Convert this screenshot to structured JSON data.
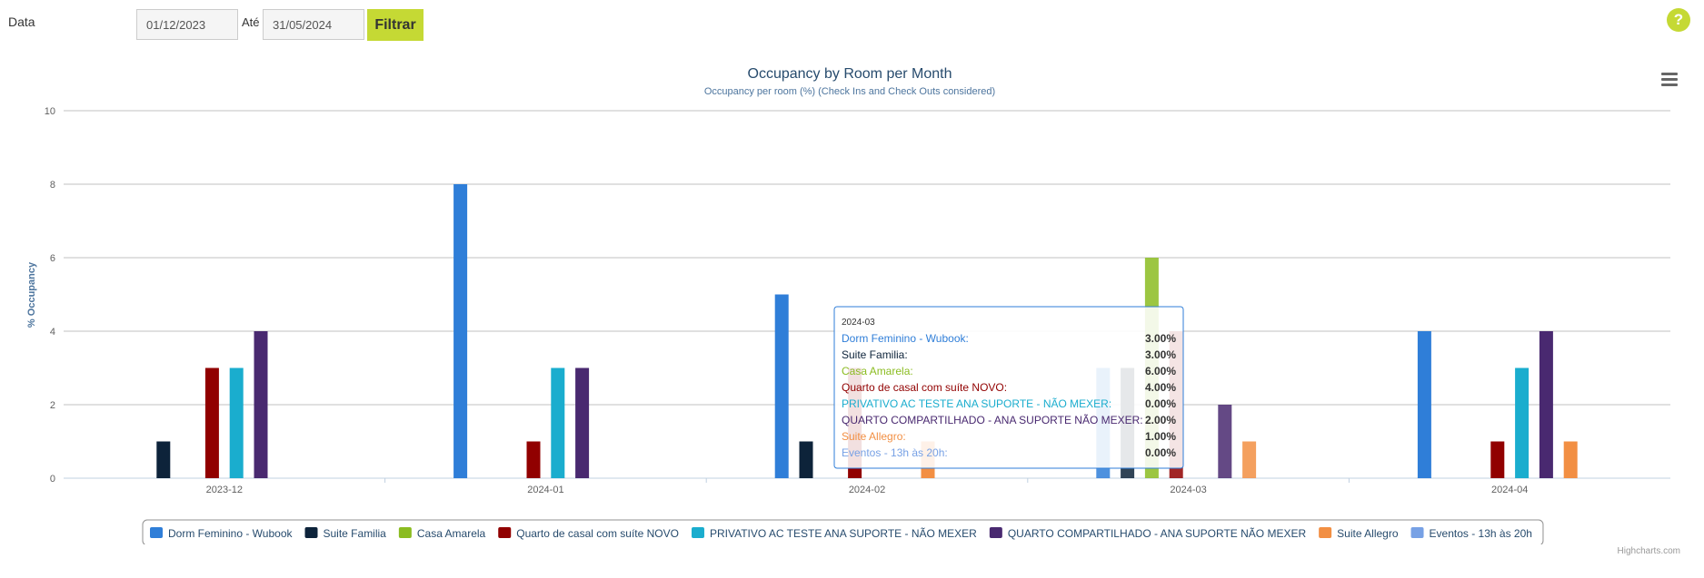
{
  "filter": {
    "label": "Data",
    "from_value": "01/12/2023",
    "ate_label": "Até",
    "to_value": "31/05/2024",
    "button_label": "Filtrar",
    "help_label": "?"
  },
  "colors": {
    "accent": "#c5d934"
  },
  "chart_data": {
    "type": "bar",
    "title": "Occupancy by Room per Month",
    "subtitle": "Occupancy per room (%) (Check Ins and Check Outs considered)",
    "xlabel": "",
    "ylabel": "% Occupancy",
    "ylim": [
      0,
      10
    ],
    "yticks": [
      "0",
      "2",
      "4",
      "6",
      "8",
      "10"
    ],
    "grid": true,
    "legend_position": "bottom",
    "categories": [
      "2023-12",
      "2024-01",
      "2024-02",
      "2024-03",
      "2024-04"
    ],
    "series": [
      {
        "name": "Dorm Feminino - Wubook",
        "color": "#2f7ed8",
        "values": [
          0,
          8,
          5,
          3,
          4
        ]
      },
      {
        "name": "Suite Familia",
        "color": "#0d233a",
        "values": [
          1,
          0,
          1,
          3,
          0
        ]
      },
      {
        "name": "Casa Amarela",
        "color": "#8bbc21",
        "values": [
          0,
          0,
          0,
          6,
          0
        ]
      },
      {
        "name": "Quarto de casal com suíte NOVO",
        "color": "#910000",
        "values": [
          3,
          1,
          3,
          4,
          1
        ]
      },
      {
        "name": "PRIVATIVO AC TESTE ANA SUPORTE - NÃO MEXER",
        "color": "#1aadce",
        "values": [
          3,
          3,
          0,
          0,
          3
        ]
      },
      {
        "name": "QUARTO COMPARTILHADO - ANA SUPORTE NÃO MEXER",
        "color": "#492970",
        "values": [
          4,
          3,
          0,
          2,
          4
        ]
      },
      {
        "name": "Suite Allegro",
        "color": "#f28f43",
        "values": [
          0,
          0,
          1,
          1,
          1
        ]
      },
      {
        "name": "Eventos - 13h às 20h",
        "color": "#77a1e5",
        "values": [
          0,
          0,
          0,
          0,
          0
        ]
      }
    ],
    "tooltip": {
      "category": "2024-03",
      "rows": [
        {
          "label": "Dorm Feminino - Wubook:",
          "value": "3.00%"
        },
        {
          "label": "Suite Familia:",
          "value": "3.00%"
        },
        {
          "label": "Casa Amarela:",
          "value": "6.00%"
        },
        {
          "label": "Quarto de casal com suíte NOVO:",
          "value": "4.00%"
        },
        {
          "label": "PRIVATIVO AC TESTE ANA SUPORTE - NÃO MEXER:",
          "value": "0.00%"
        },
        {
          "label": "QUARTO COMPARTILHADO - ANA SUPORTE NÃO MEXER:",
          "value": "2.00%"
        },
        {
          "label": "Suite Allegro:",
          "value": "1.00%"
        },
        {
          "label": "Eventos - 13h às 20h:",
          "value": "0.00%"
        }
      ]
    },
    "credits": "Highcharts.com"
  }
}
